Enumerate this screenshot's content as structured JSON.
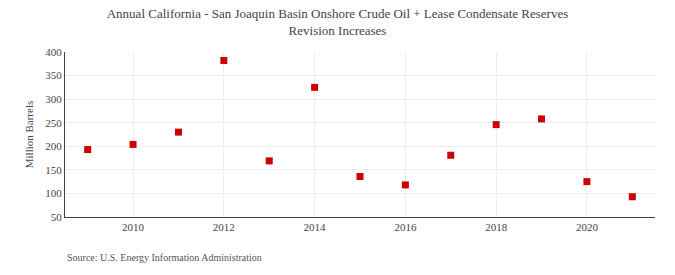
{
  "chart_data": {
    "type": "scatter",
    "title": "Annual California - San Joaquin Basin Onshore Crude Oil + Lease Condensate Reserves",
    "subtitle": "Revision Increases",
    "y_label": "Million Barrels",
    "annotations": [
      "Source: U.S. Energy Information Administration"
    ],
    "x": [
      2009,
      2010,
      2011,
      2012,
      2013,
      2014,
      2015,
      2016,
      2017,
      2018,
      2019,
      2020,
      2021
    ],
    "values": [
      193,
      204,
      230,
      382,
      169,
      325,
      136,
      118,
      181,
      246,
      258,
      125,
      93
    ],
    "color": "#cc0000",
    "marker": "square",
    "xlim": [
      2008.5,
      2021.5
    ],
    "xticks": [
      2010,
      2012,
      2014,
      2016,
      2018,
      2020
    ],
    "ylim": [
      50,
      400
    ],
    "yticks": [
      50,
      100,
      150,
      200,
      250,
      300,
      350,
      400
    ],
    "grid": true
  }
}
